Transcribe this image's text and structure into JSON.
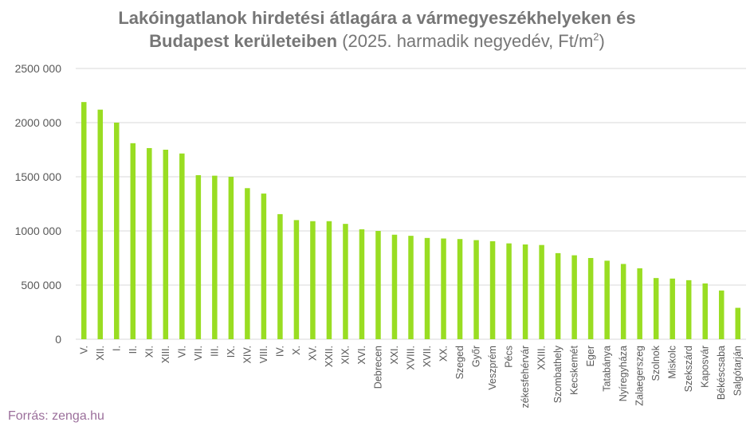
{
  "title": {
    "bold_line1": "Lakóingatlanok hirdetési átlagára a vármegyeszékhelyeken és",
    "bold_line2": "Budapest kerületeiben",
    "normal_part": "(2025. harmadik negyedév, Ft/m",
    "unit_sup": "2",
    "close": ")"
  },
  "source": "Forrás: zenga.hu",
  "colors": {
    "bar": "#99dd22",
    "grid": "#d9d9d9",
    "text": "#595959",
    "title": "#767676",
    "source": "#9b6f9b"
  },
  "chart_data": {
    "type": "bar",
    "categories": [
      "V.",
      "XII.",
      "I.",
      "II.",
      "XI.",
      "XIII.",
      "VI.",
      "VII.",
      "III.",
      "IX.",
      "XIV.",
      "VIII.",
      "IV.",
      "X.",
      "XV.",
      "XXII.",
      "XIX.",
      "XVI.",
      "Debrecen",
      "XXI.",
      "XVIII.",
      "XVII.",
      "XX.",
      "Szeged",
      "Győr",
      "Veszprém",
      "Pécs",
      "Székesfehérvár",
      "XXIII.",
      "Szombathely",
      "Kecskemét",
      "Eger",
      "Tatabánya",
      "Nyíregyháza",
      "Zalaegerszeg",
      "Szolnok",
      "Miskolc",
      "Szekszárd",
      "Kaposvár",
      "Békéscsaba",
      "Salgótarján"
    ],
    "values": [
      2190000,
      2120000,
      2000000,
      1810000,
      1765000,
      1750000,
      1715000,
      1515000,
      1510000,
      1500000,
      1395000,
      1345000,
      1155000,
      1100000,
      1090000,
      1090000,
      1065000,
      1015000,
      1000000,
      965000,
      955000,
      935000,
      930000,
      925000,
      915000,
      905000,
      885000,
      875000,
      870000,
      795000,
      775000,
      750000,
      725000,
      695000,
      655000,
      565000,
      560000,
      545000,
      515000,
      450000,
      290000
    ],
    "yticks": [
      "0",
      "500 000",
      "1000 000",
      "1500 000",
      "2000 000",
      "2500 000"
    ],
    "ylim": [
      0,
      2500000
    ],
    "grid": true,
    "legend": "none"
  }
}
